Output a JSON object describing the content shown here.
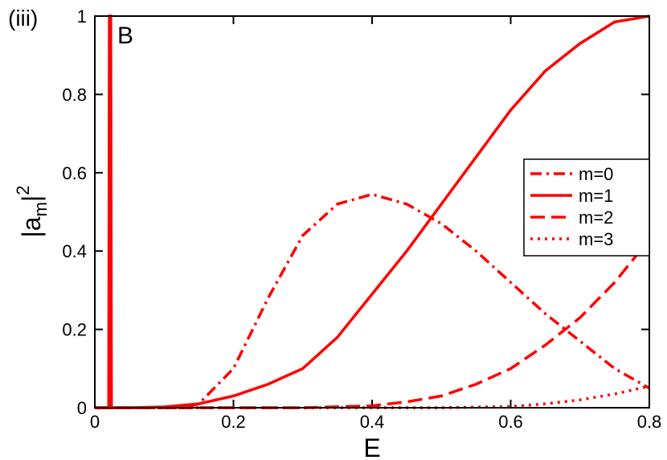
{
  "chart_data": {
    "type": "line",
    "panel_label": "(iii)",
    "annotation": "B",
    "xlabel": "E",
    "ylabel": {
      "base": "|a",
      "sub": "m",
      "close": "|",
      "sup": "2"
    },
    "xlim": [
      0,
      0.8
    ],
    "ylim": [
      0,
      1
    ],
    "xticks": [
      0,
      0.2,
      0.4,
      0.6,
      0.8
    ],
    "yticks": [
      0,
      0.2,
      0.4,
      0.6,
      0.8,
      1
    ],
    "legend": "right",
    "series": [
      {
        "name": "m=0",
        "color": "#ff0000",
        "dash": "dashdot",
        "x": [
          0,
          0.13,
          0.15,
          0.2,
          0.25,
          0.3,
          0.35,
          0.4,
          0.45,
          0.5,
          0.55,
          0.6,
          0.65,
          0.7,
          0.75,
          0.8
        ],
        "values": [
          0,
          0,
          0.01,
          0.1,
          0.28,
          0.44,
          0.52,
          0.545,
          0.52,
          0.47,
          0.4,
          0.32,
          0.24,
          0.17,
          0.1,
          0.05
        ]
      },
      {
        "name": "m=1",
        "color": "#ff0000",
        "dash": "solid",
        "x": [
          0,
          0.02,
          0.021,
          0.023,
          0.024,
          0.05,
          0.1,
          0.15,
          0.2,
          0.25,
          0.3,
          0.35,
          0.4,
          0.45,
          0.5,
          0.55,
          0.6,
          0.65,
          0.7,
          0.75,
          0.8
        ],
        "values": [
          0,
          0,
          1,
          1,
          0,
          0,
          0.002,
          0.01,
          0.03,
          0.06,
          0.1,
          0.18,
          0.29,
          0.4,
          0.52,
          0.64,
          0.76,
          0.86,
          0.93,
          0.985,
          1
        ]
      },
      {
        "name": "m=2",
        "color": "#ff0000",
        "dash": "dashed",
        "x": [
          0,
          0.3,
          0.4,
          0.45,
          0.5,
          0.55,
          0.6,
          0.65,
          0.7,
          0.75,
          0.8
        ],
        "values": [
          0,
          0,
          0.005,
          0.015,
          0.03,
          0.06,
          0.1,
          0.16,
          0.23,
          0.32,
          0.43
        ]
      },
      {
        "name": "m=3",
        "color": "#ff0000",
        "dash": "dotted",
        "x": [
          0,
          0.5,
          0.6,
          0.65,
          0.7,
          0.75,
          0.8
        ],
        "values": [
          0,
          0,
          0.003,
          0.01,
          0.02,
          0.035,
          0.055
        ]
      }
    ]
  }
}
